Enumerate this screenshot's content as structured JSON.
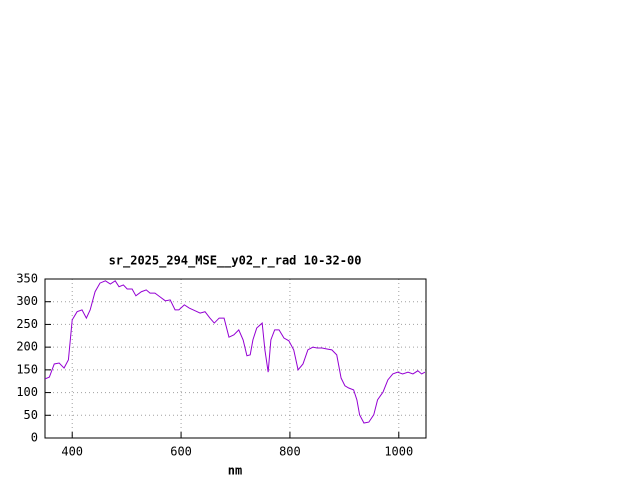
{
  "chart_data": {
    "type": "line",
    "title": "sr_2025_294_MSE__y02_r_rad 10-32-00",
    "x_label": "nm",
    "x": [
      350,
      358,
      367,
      376,
      385,
      393,
      400,
      409,
      418,
      426,
      433,
      442,
      451,
      461,
      470,
      479,
      486,
      494,
      501,
      510,
      517,
      527,
      536,
      543,
      552,
      561,
      571,
      580,
      589,
      596,
      606,
      615,
      626,
      635,
      644,
      653,
      661,
      670,
      679,
      688,
      697,
      706,
      714,
      721,
      727,
      732,
      739,
      749,
      754,
      760,
      765,
      772,
      780,
      789,
      798,
      807,
      815,
      824,
      833,
      842,
      850,
      859,
      868,
      877,
      886,
      894,
      901,
      908,
      917,
      923,
      928,
      936,
      945,
      954,
      961,
      971,
      980,
      989,
      998,
      1007,
      1017,
      1026,
      1035,
      1042,
      1048
    ],
    "series": [
      {
        "color": "#9400d3",
        "values": [
          130,
          134,
          163,
          165,
          154,
          172,
          260,
          278,
          282,
          264,
          282,
          322,
          341,
          346,
          339,
          346,
          333,
          337,
          328,
          328,
          313,
          322,
          326,
          319,
          319,
          311,
          302,
          304,
          282,
          282,
          293,
          286,
          280,
          275,
          278,
          264,
          253,
          264,
          264,
          222,
          227,
          238,
          216,
          181,
          183,
          216,
          242,
          253,
          194,
          145,
          216,
          238,
          238,
          220,
          214,
          194,
          150,
          163,
          194,
          200,
          198,
          198,
          196,
          194,
          183,
          132,
          115,
          110,
          106,
          84,
          51,
          33,
          35,
          51,
          84,
          101,
          128,
          141,
          145,
          141,
          145,
          141,
          148,
          141,
          145
        ]
      }
    ],
    "xlim": [
      350,
      1050
    ],
    "ylim": [
      0,
      350
    ],
    "xticks": [
      400,
      600,
      800,
      1000
    ],
    "yticks": [
      0,
      50,
      100,
      150,
      200,
      250,
      300,
      350
    ],
    "grid": true
  }
}
